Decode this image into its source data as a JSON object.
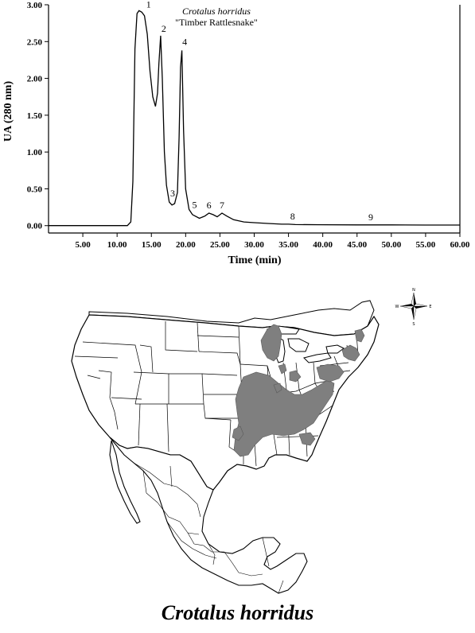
{
  "chart_data": {
    "type": "line",
    "title": "Crotalus horridus",
    "subtitle": "\"Timber Rattlesnake\"",
    "xlabel": "Time (min)",
    "ylabel": "UA (280 nm)",
    "xlim": [
      0,
      60
    ],
    "ylim": [
      -0.1,
      3.0
    ],
    "grid": false,
    "x_ticks": [
      "5.00",
      "10.00",
      "15.00",
      "20.00",
      "25.00",
      "30.00",
      "35.00",
      "40.00",
      "45.00",
      "50.00",
      "55.00",
      "60.00"
    ],
    "x_tick_values": [
      5,
      10,
      15,
      20,
      25,
      30,
      35,
      40,
      45,
      50,
      55,
      60
    ],
    "y_ticks": [
      "0.00",
      "0.50",
      "1.00",
      "1.50",
      "2.00",
      "2.50",
      "3.00"
    ],
    "y_tick_values": [
      0,
      0.5,
      1.0,
      1.5,
      2.0,
      2.5,
      3.0
    ],
    "series": [
      {
        "x": [
          0,
          11.5,
          12.0,
          12.3,
          12.6,
          12.9,
          13.2,
          13.6,
          14.0,
          14.4,
          14.8,
          15.2,
          15.6,
          15.9,
          16.1,
          16.35,
          16.6,
          16.9,
          17.2,
          17.6,
          18.0,
          18.4,
          18.8,
          19.05,
          19.25,
          19.45,
          19.7,
          20.0,
          20.5,
          21.0,
          22.0,
          22.8,
          23.4,
          24.0,
          24.6,
          25.3,
          26.0,
          27.0,
          28.5,
          30.0,
          32.0,
          34.0,
          35.0,
          36.0,
          40.0,
          45.0,
          50.0,
          55.0,
          60.0
        ],
        "y": [
          0.0,
          0.0,
          0.05,
          0.6,
          2.4,
          2.88,
          2.92,
          2.9,
          2.85,
          2.6,
          2.1,
          1.75,
          1.62,
          1.8,
          2.2,
          2.58,
          2.0,
          1.0,
          0.55,
          0.32,
          0.28,
          0.3,
          0.45,
          1.2,
          2.15,
          2.38,
          1.3,
          0.5,
          0.22,
          0.15,
          0.1,
          0.13,
          0.17,
          0.15,
          0.12,
          0.17,
          0.13,
          0.08,
          0.05,
          0.04,
          0.03,
          0.02,
          0.02,
          0.015,
          0.012,
          0.01,
          0.01,
          0.008,
          0.008
        ]
      }
    ],
    "peaks": [
      {
        "label": "1",
        "x": 13.2,
        "y": 2.92
      },
      {
        "label": "2",
        "x": 16.35,
        "y": 2.58
      },
      {
        "label": "3",
        "x": 18.1,
        "y": 0.29
      },
      {
        "label": "4",
        "x": 19.4,
        "y": 2.38
      },
      {
        "label": "5",
        "x": 21.3,
        "y": 0.13
      },
      {
        "label": "6",
        "x": 23.4,
        "y": 0.17
      },
      {
        "label": "7",
        "x": 25.3,
        "y": 0.17
      },
      {
        "label": "8",
        "x": 35.6,
        "y": 0.02
      },
      {
        "label": "9",
        "x": 47.0,
        "y": 0.01
      }
    ]
  },
  "map": {
    "caption": "Crotalus horridus",
    "range_color": "#7f7f7f",
    "outline_color": "#000000",
    "compass": {
      "north": "N",
      "south": "S",
      "east": "E",
      "west": "W"
    }
  }
}
